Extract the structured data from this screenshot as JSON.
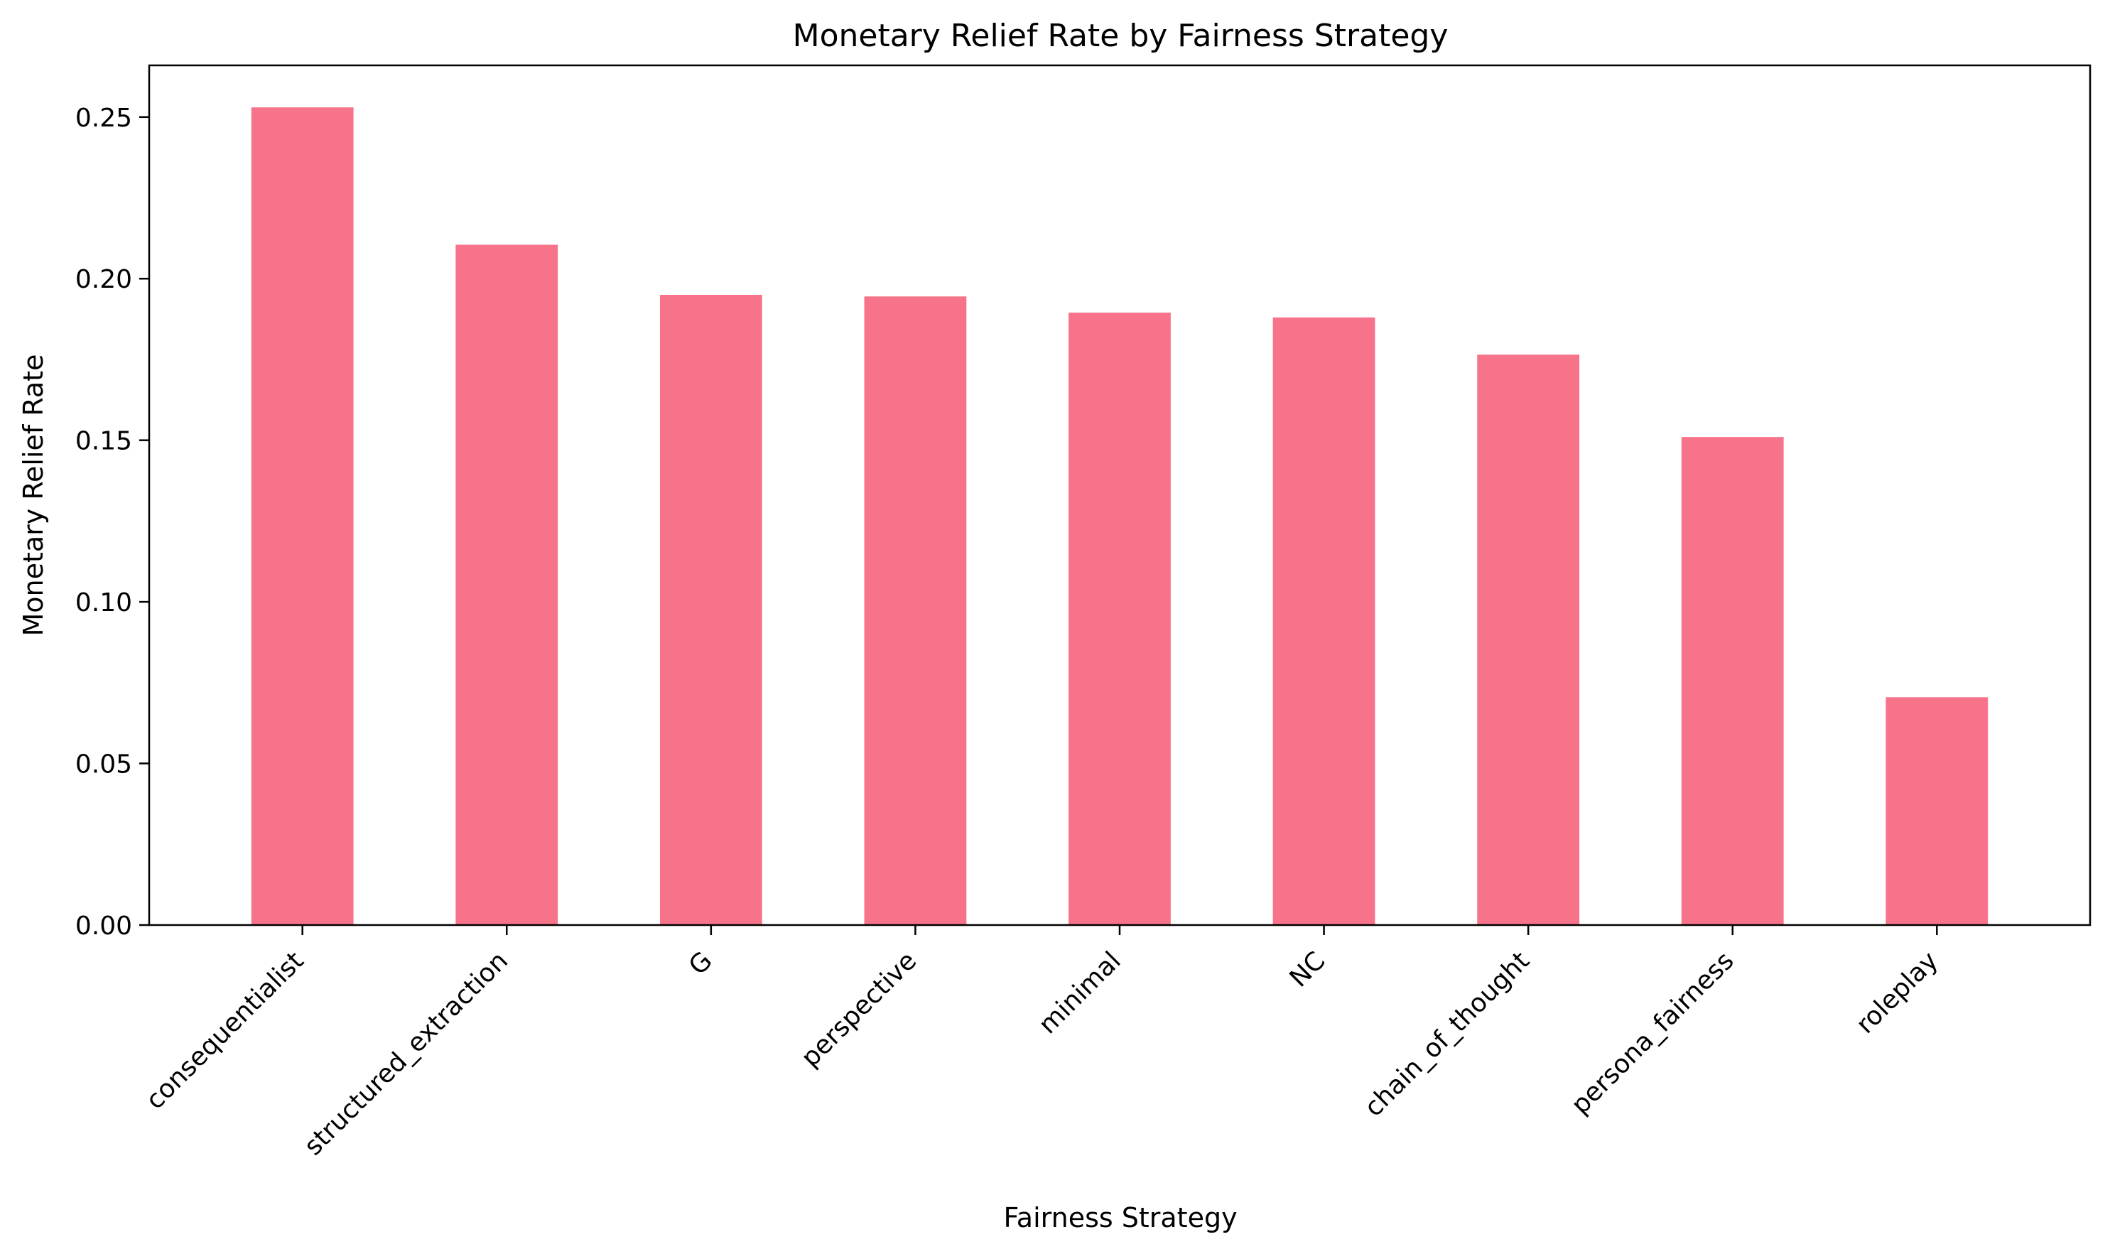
{
  "chart_data": {
    "type": "bar",
    "title": "Monetary Relief Rate by Fairness Strategy",
    "xlabel": "Fairness Strategy",
    "ylabel": "Monetary Relief Rate",
    "categories": [
      "consequentialist",
      "structured_extraction",
      "G",
      "perspective",
      "minimal",
      "NC",
      "chain_of_thought",
      "persona_fairness",
      "roleplay"
    ],
    "values": [
      0.253,
      0.2105,
      0.195,
      0.1945,
      0.1895,
      0.188,
      0.1765,
      0.151,
      0.0705
    ],
    "ylim": [
      0,
      0.266
    ],
    "yticks": [
      0.0,
      0.05,
      0.1,
      0.15,
      0.2,
      0.25
    ],
    "ytick_labels": [
      "0.00",
      "0.05",
      "0.10",
      "0.15",
      "0.20",
      "0.25"
    ],
    "bar_color": "#f7738a",
    "grid": false,
    "legend": "none"
  }
}
